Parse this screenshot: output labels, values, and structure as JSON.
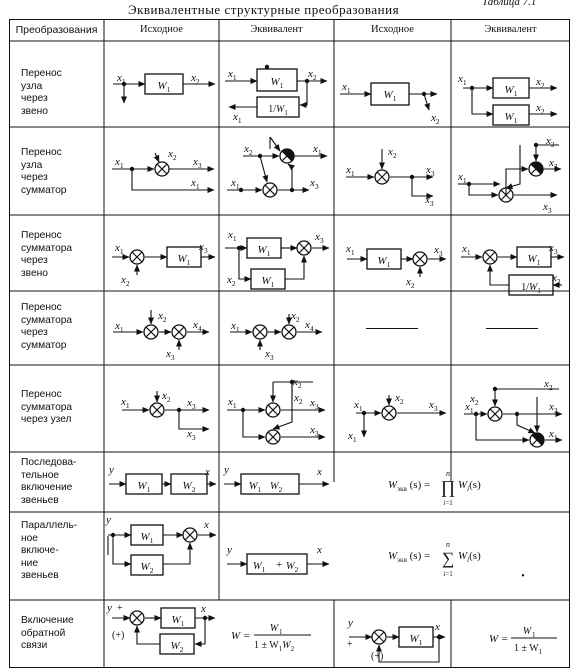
{
  "caption": {
    "title": "Эквивалентные структурные преобразования",
    "table_label": "Таблица 7.1"
  },
  "header": {
    "col_transform": "Преобразования",
    "col_original_1": "Исходное",
    "col_equivalent_1": "Эквивалент",
    "col_original_2": "Исходное",
    "col_equivalent_2": "Эквивалент"
  },
  "rows": [
    {
      "label": "Перенос узла\nчерез звено"
    },
    {
      "label": "Перенос узла\nчерез\nсумматор"
    },
    {
      "label": "Перенос\nсумматора\nчерез звено"
    },
    {
      "label": "Перенос\nсумматора\nчерез\nсумматор"
    },
    {
      "label": "Перенос\nсумматора\nчерез узел"
    },
    {
      "label": "Последова-\nтельное\nвключение\nзвеньев"
    },
    {
      "label": "Параллель-\nное включе-\nние\nзвеньев"
    },
    {
      "label": "Включение\nобратной\nсвязи"
    }
  ],
  "symbols": {
    "x1": "x",
    "x2": "x",
    "x3": "x",
    "x4": "x",
    "i1": "1",
    "i2": "2",
    "i3": "3",
    "i4": "4",
    "W": "W",
    "W1": "W",
    "one_over": "1/",
    "W1W2": "W",
    "plus": "+",
    "plus_paren": "(+)",
    "y": "y",
    "x": "x",
    "W_eq": "W",
    "eq_sub": "экв",
    "s_arg": "(s) =",
    "prod": "∏",
    "sum": "∑",
    "n": "n",
    "i_eq": "i=1",
    "Wi_s": "W",
    "i": "i",
    "s_par": "(s)",
    "W_plain": "W =",
    "num_W1": "W",
    "den_fb": "1 ± W",
    "den_fb_tail": "W",
    "dot": "•"
  }
}
